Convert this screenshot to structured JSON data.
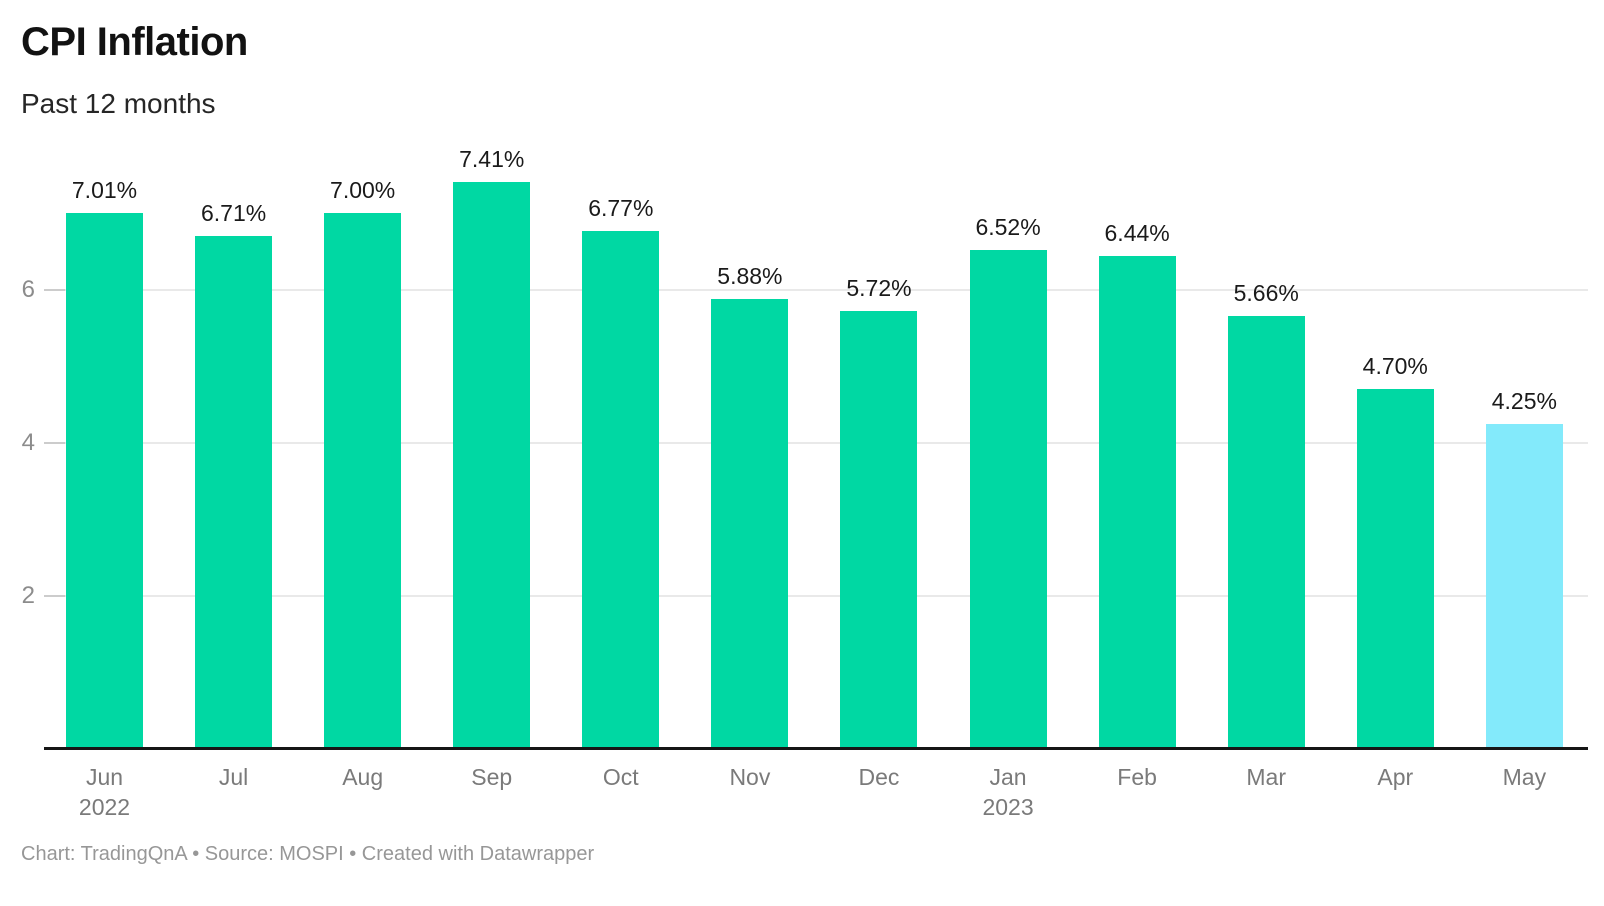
{
  "header": {
    "title": "CPI Inflation",
    "subtitle": "Past 12 months"
  },
  "footer": {
    "credit": "Chart: TradingQnA • Source: MOSPI • Created with Datawrapper"
  },
  "colors": {
    "bar": "#00d8a3",
    "highlight_bar": "#83eafb",
    "gridline": "#e9e9e9",
    "tick": "#cccccc",
    "axis_line": "#161616",
    "value_label": "#1a1a1a",
    "axis_text": "#7a7a7a",
    "footer_text": "#979797"
  },
  "chart_data": {
    "type": "bar",
    "title": "CPI Inflation",
    "subtitle": "Past 12 months",
    "unit": "%",
    "categories": [
      "Jun",
      "Jul",
      "Aug",
      "Sep",
      "Oct",
      "Nov",
      "Dec",
      "Jan",
      "Feb",
      "Mar",
      "Apr",
      "May"
    ],
    "category_year_line2": [
      "2022",
      "",
      "",
      "",
      "",
      "",
      "",
      "2023",
      "",
      "",
      "",
      ""
    ],
    "values": [
      7.01,
      6.71,
      7.0,
      7.41,
      6.77,
      5.88,
      5.72,
      6.52,
      6.44,
      5.66,
      4.7,
      4.25
    ],
    "value_labels": [
      "7.01%",
      "6.71%",
      "7.00%",
      "7.41%",
      "6.77%",
      "5.88%",
      "5.72%",
      "6.52%",
      "6.44%",
      "5.66%",
      "4.70%",
      "4.25%"
    ],
    "highlight_index": 11,
    "ylim": [
      0,
      7.96
    ],
    "yticks": [
      2,
      4,
      6
    ],
    "grid": true,
    "legend": "none",
    "xlabel": "",
    "ylabel": ""
  }
}
